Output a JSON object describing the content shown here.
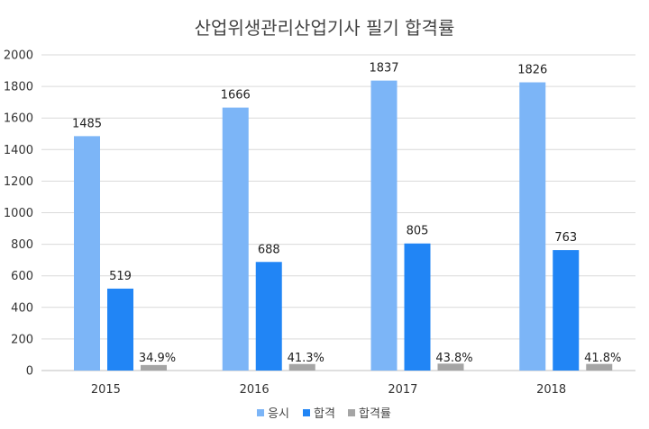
{
  "chart_data": {
    "type": "bar",
    "title": "산업위생관리산업기사 필기 합격률",
    "categories": [
      "2015",
      "2016",
      "2017",
      "2018"
    ],
    "series": [
      {
        "name": "응시",
        "values": [
          1485,
          1666,
          1837,
          1826
        ],
        "labels": [
          "1485",
          "1666",
          "1837",
          "1826"
        ],
        "color": "#7cb5f7"
      },
      {
        "name": "합격",
        "values": [
          519,
          688,
          805,
          763
        ],
        "labels": [
          "519",
          "688",
          "805",
          "763"
        ],
        "color": "#2185f5"
      },
      {
        "name": "합격률",
        "values": [
          34.9,
          41.3,
          43.8,
          41.8
        ],
        "labels": [
          "34.9%",
          "41.3%",
          "43.8%",
          "41.8%"
        ],
        "color": "#a5a5a5"
      }
    ],
    "yticks": [
      "0",
      "200",
      "400",
      "600",
      "800",
      "1000",
      "1200",
      "1400",
      "1600",
      "1800",
      "2000"
    ],
    "ylim": [
      0,
      2000
    ],
    "grid": true,
    "legend_position": "bottom"
  }
}
